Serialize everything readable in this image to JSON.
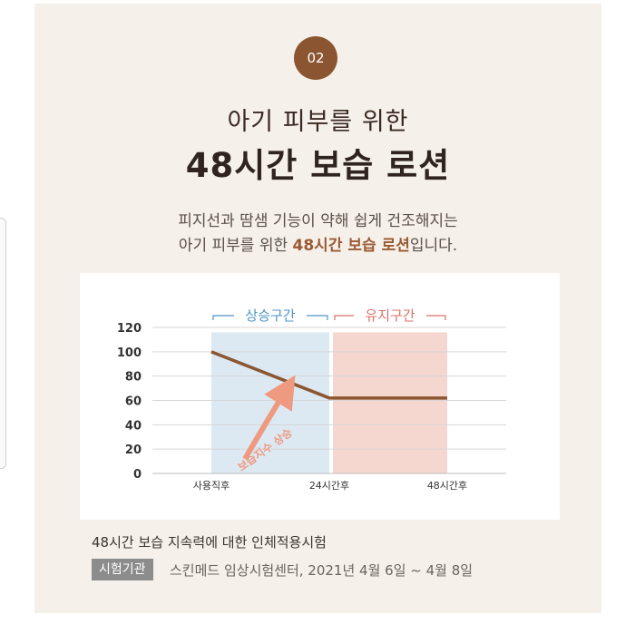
{
  "badge": "02",
  "subtitle": "아기 피부를 위한",
  "title": "48시간 보습 로션",
  "desc_line1": "피지선과 땀샘 기능이 약해 쉽게 건조해지는",
  "desc_line2_pre": "아기 피부를 위한 ",
  "desc_line2_highlight": "48시간 보습 로션",
  "desc_line2_post": "입니다.",
  "chart_data": {
    "type": "line",
    "categories": [
      "사용직후",
      "24시간후",
      "48시간후"
    ],
    "series": [
      {
        "values": [
          100,
          62,
          62
        ]
      }
    ],
    "ylim": [
      0,
      120
    ],
    "yticks": [
      0,
      20,
      40,
      60,
      80,
      100,
      120
    ],
    "grid": true,
    "zones": [
      {
        "label": "상승구간",
        "color": "#dce9f3",
        "labelColor": "#4f95c8"
      },
      {
        "label": "유지구간",
        "color": "#f6d7d0",
        "labelColor": "#d9716a"
      }
    ],
    "arrow_label": "보습지수 상승",
    "lineColor": "#8b5632",
    "arrowColor": "#ee9a80"
  },
  "caption": "48시간 보습 지속력에 대한 인체적용시험",
  "org_label": "시험기관",
  "org_text": "스킨메드 임상시험센터, 2021년 4월 6일 ~ 4월 8일"
}
